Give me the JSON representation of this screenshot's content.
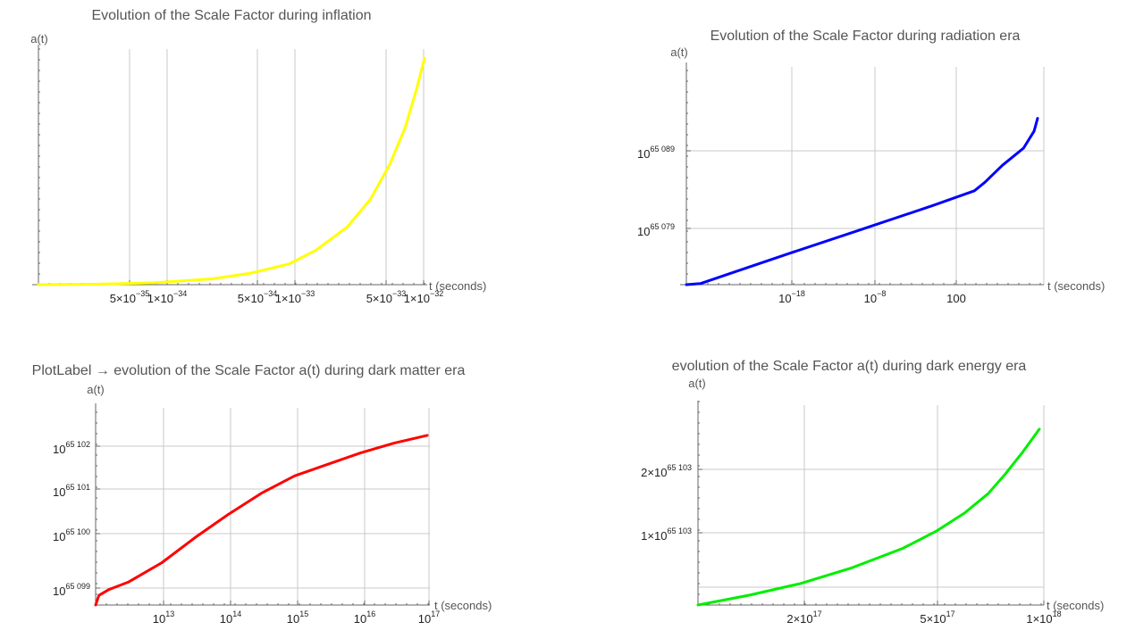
{
  "chart_data": [
    {
      "id": "inflation",
      "type": "line",
      "title": "Evolution of the Scale Factor during inflation",
      "xlabel": "t (seconds)",
      "ylabel": "a(t)",
      "grid": true,
      "color": "#ffff00",
      "xtick_labels": [
        [
          {
            "t": "5×10"
          },
          {
            "t": "−35",
            "sup": true
          }
        ],
        [
          {
            "t": "1×10"
          },
          {
            "t": "−34",
            "sup": true
          }
        ],
        [
          {
            "t": "5×10"
          },
          {
            "t": "−34",
            "sup": true
          }
        ],
        [
          {
            "t": "1×10"
          },
          {
            "t": "−33",
            "sup": true
          }
        ],
        [
          {
            "t": "5×10"
          },
          {
            "t": "−33",
            "sup": true
          }
        ],
        [
          {
            "t": "1×10"
          },
          {
            "t": "−32",
            "sup": true
          }
        ]
      ],
      "ytick_labels": [],
      "series": [
        {
          "values": [
            [
              0,
              0
            ],
            [
              0.15,
              0.002
            ],
            [
              0.3,
              0.008
            ],
            [
              0.45,
              0.025
            ],
            [
              0.55,
              0.05
            ],
            [
              0.65,
              0.09
            ],
            [
              0.72,
              0.15
            ],
            [
              0.8,
              0.25
            ],
            [
              0.86,
              0.37
            ],
            [
              0.91,
              0.52
            ],
            [
              0.95,
              0.68
            ],
            [
              0.98,
              0.85
            ],
            [
              1.0,
              0.98
            ]
          ]
        }
      ]
    },
    {
      "id": "radiation",
      "type": "line",
      "title": "Evolution of the Scale Factor during radiation era",
      "xlabel": "t (seconds)",
      "ylabel": "a(t)",
      "grid": true,
      "color": "#0000ff",
      "xtick_labels": [
        [
          {
            "t": "10"
          },
          {
            "t": "−18",
            "sup": true
          }
        ],
        [
          {
            "t": "10"
          },
          {
            "t": "−8",
            "sup": true
          }
        ],
        [
          {
            "t": "100"
          }
        ]
      ],
      "ytick_labels": [
        [
          {
            "t": "10"
          },
          {
            "t": "65 089",
            "sup": true
          }
        ],
        [
          {
            "t": "10"
          },
          {
            "t": "65 079",
            "sup": true
          }
        ]
      ],
      "series": [
        {
          "values": [
            [
              0,
              0
            ],
            [
              0.04,
              0.005
            ],
            [
              0.12,
              0.05
            ],
            [
              0.3,
              0.15
            ],
            [
              0.5,
              0.26
            ],
            [
              0.7,
              0.37
            ],
            [
              0.82,
              0.44
            ],
            [
              0.85,
              0.48
            ],
            [
              0.9,
              0.56
            ],
            [
              0.96,
              0.64
            ],
            [
              0.99,
              0.72
            ],
            [
              1.0,
              0.78
            ]
          ]
        }
      ]
    },
    {
      "id": "dark-matter",
      "type": "line",
      "title": "PlotLabel → evolution of the Scale Factor a(t) during dark matter era",
      "xlabel": "t (seconds)",
      "ylabel": "a(t)",
      "grid": true,
      "color": "#ff0000",
      "xtick_labels": [
        [
          {
            "t": "10"
          },
          {
            "t": "13",
            "sup": true
          }
        ],
        [
          {
            "t": "10"
          },
          {
            "t": "14",
            "sup": true
          }
        ],
        [
          {
            "t": "10"
          },
          {
            "t": "15",
            "sup": true
          }
        ],
        [
          {
            "t": "10"
          },
          {
            "t": "16",
            "sup": true
          }
        ],
        [
          {
            "t": "10"
          },
          {
            "t": "17",
            "sup": true
          }
        ]
      ],
      "ytick_labels": [
        [
          {
            "t": "10"
          },
          {
            "t": "65 102",
            "sup": true
          }
        ],
        [
          {
            "t": "10"
          },
          {
            "t": "65 101",
            "sup": true
          }
        ],
        [
          {
            "t": "10"
          },
          {
            "t": "65 100",
            "sup": true
          }
        ],
        [
          {
            "t": "10"
          },
          {
            "t": "65 099",
            "sup": true
          }
        ]
      ],
      "series": [
        {
          "values": [
            [
              0,
              0
            ],
            [
              0.01,
              0.05
            ],
            [
              0.04,
              0.08
            ],
            [
              0.1,
              0.12
            ],
            [
              0.2,
              0.22
            ],
            [
              0.3,
              0.35
            ],
            [
              0.4,
              0.47
            ],
            [
              0.5,
              0.58
            ],
            [
              0.6,
              0.67
            ],
            [
              0.7,
              0.73
            ],
            [
              0.8,
              0.79
            ],
            [
              0.9,
              0.84
            ],
            [
              1.0,
              0.88
            ]
          ]
        }
      ]
    },
    {
      "id": "dark-energy",
      "type": "line",
      "title": "evolution of the Scale Factor a(t) during dark energy era",
      "xlabel": "t (seconds)",
      "ylabel": "a(t)",
      "grid": true,
      "color": "#00ee00",
      "xtick_labels": [
        [
          {
            "t": "2×10"
          },
          {
            "t": "17",
            "sup": true
          }
        ],
        [
          {
            "t": "5×10"
          },
          {
            "t": "17",
            "sup": true
          }
        ],
        [
          {
            "t": "1×10"
          },
          {
            "t": "18",
            "sup": true
          }
        ]
      ],
      "ytick_labels": [
        [
          {
            "t": "2×10"
          },
          {
            "t": "65 103",
            "sup": true
          }
        ],
        [
          {
            "t": "1×10"
          },
          {
            "t": "65 103",
            "sup": true
          }
        ]
      ],
      "series": [
        {
          "values": [
            [
              0,
              0
            ],
            [
              0.15,
              0.05
            ],
            [
              0.3,
              0.11
            ],
            [
              0.45,
              0.19
            ],
            [
              0.6,
              0.29
            ],
            [
              0.7,
              0.38
            ],
            [
              0.78,
              0.47
            ],
            [
              0.85,
              0.57
            ],
            [
              0.9,
              0.67
            ],
            [
              0.95,
              0.78
            ],
            [
              1.0,
              0.9
            ]
          ]
        }
      ]
    }
  ]
}
